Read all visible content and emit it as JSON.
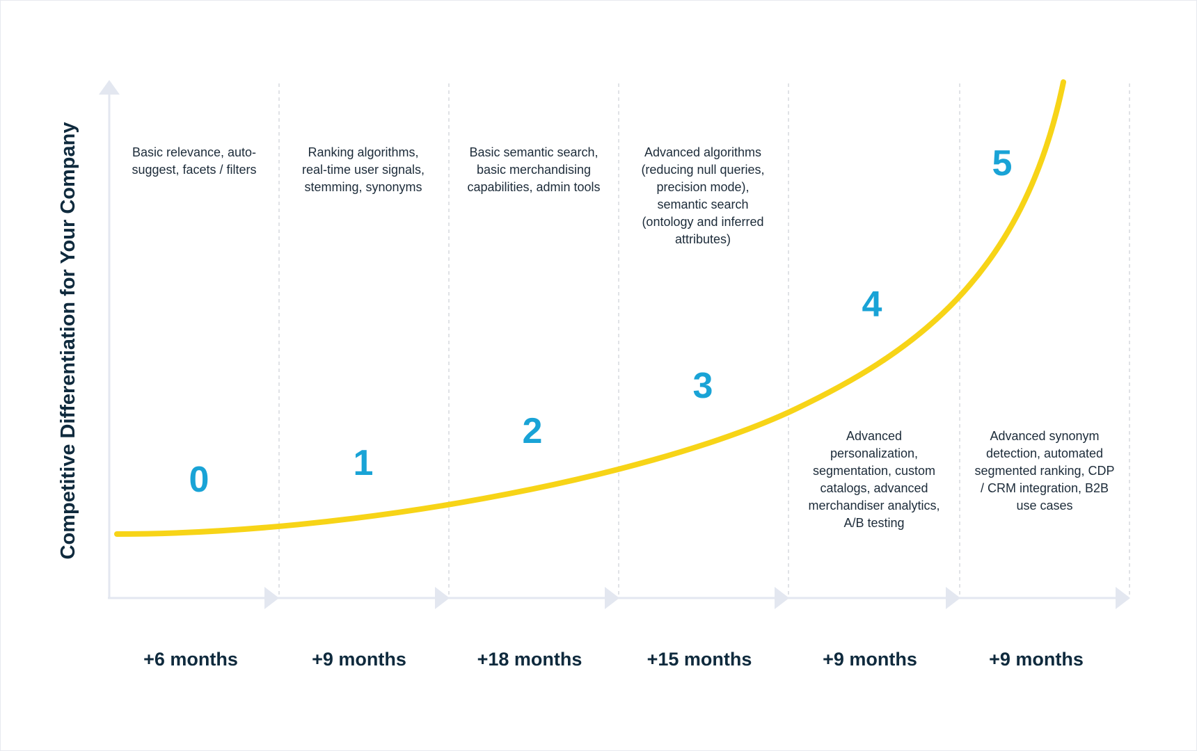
{
  "diagram": {
    "y_axis_label": "Competitive Differentiation for Your Company",
    "stages": [
      {
        "level": "0",
        "duration": "+6 months",
        "description": "Basic relevance, auto-suggest, facets / filters"
      },
      {
        "level": "1",
        "duration": "+9 months",
        "description": "Ranking algorithms, real-time user signals, stemming, synonyms"
      },
      {
        "level": "2",
        "duration": "+18 months",
        "description": "Basic semantic search, basic merchandising capabilities, admin tools"
      },
      {
        "level": "3",
        "duration": "+15 months",
        "description": "Advanced algorithms (reducing null queries, precision mode), semantic search (ontology and inferred attributes)"
      },
      {
        "level": "4",
        "duration": "+9 months",
        "description": "Advanced personalization, segmentation, custom catalogs, advanced merchandiser analytics, A/B testing"
      },
      {
        "level": "5",
        "duration": "+9 months",
        "description": "Advanced synonym detection, automated segmented ranking, CDP / CRM integration, B2B use cases"
      }
    ],
    "colors": {
      "curve": "#f7d417",
      "level_number": "#19a3d6",
      "axis": "#e3e7f0",
      "divider": "#d6d9de",
      "text_dark": "#0f2a3d"
    }
  }
}
